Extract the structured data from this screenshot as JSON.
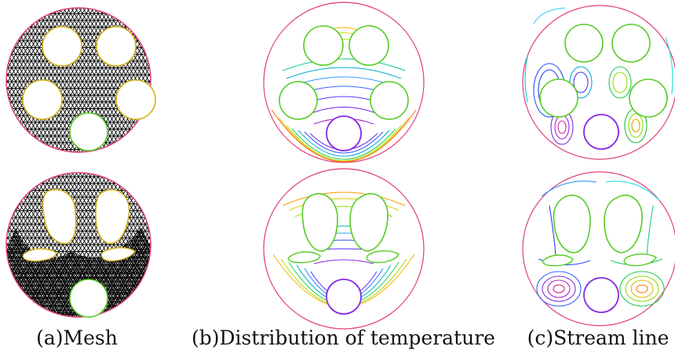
{
  "figure": {
    "captions": {
      "a": "(a)Mesh",
      "b": "(b)Distribution of temperature",
      "c": "(c)Stream line"
    },
    "panels": [
      {
        "id": "mesh-top",
        "kind": "mesh",
        "row": "top"
      },
      {
        "id": "mesh-bottom",
        "kind": "mesh",
        "row": "bottom"
      },
      {
        "id": "temperature-top",
        "kind": "isotherms",
        "row": "top"
      },
      {
        "id": "temperature-bottom",
        "kind": "isotherms",
        "row": "bottom"
      },
      {
        "id": "streamline-top",
        "kind": "streamlines",
        "row": "top"
      },
      {
        "id": "streamline-bottom",
        "kind": "streamlines",
        "row": "bottom"
      }
    ],
    "colors": {
      "outer_boundary": "#e0407a",
      "obstacle": "#55cc22",
      "obstacle_inner_edge": "#d4b21a",
      "mesh_lines": "#000000",
      "heated_cylinder": "#8a2be2"
    }
  }
}
